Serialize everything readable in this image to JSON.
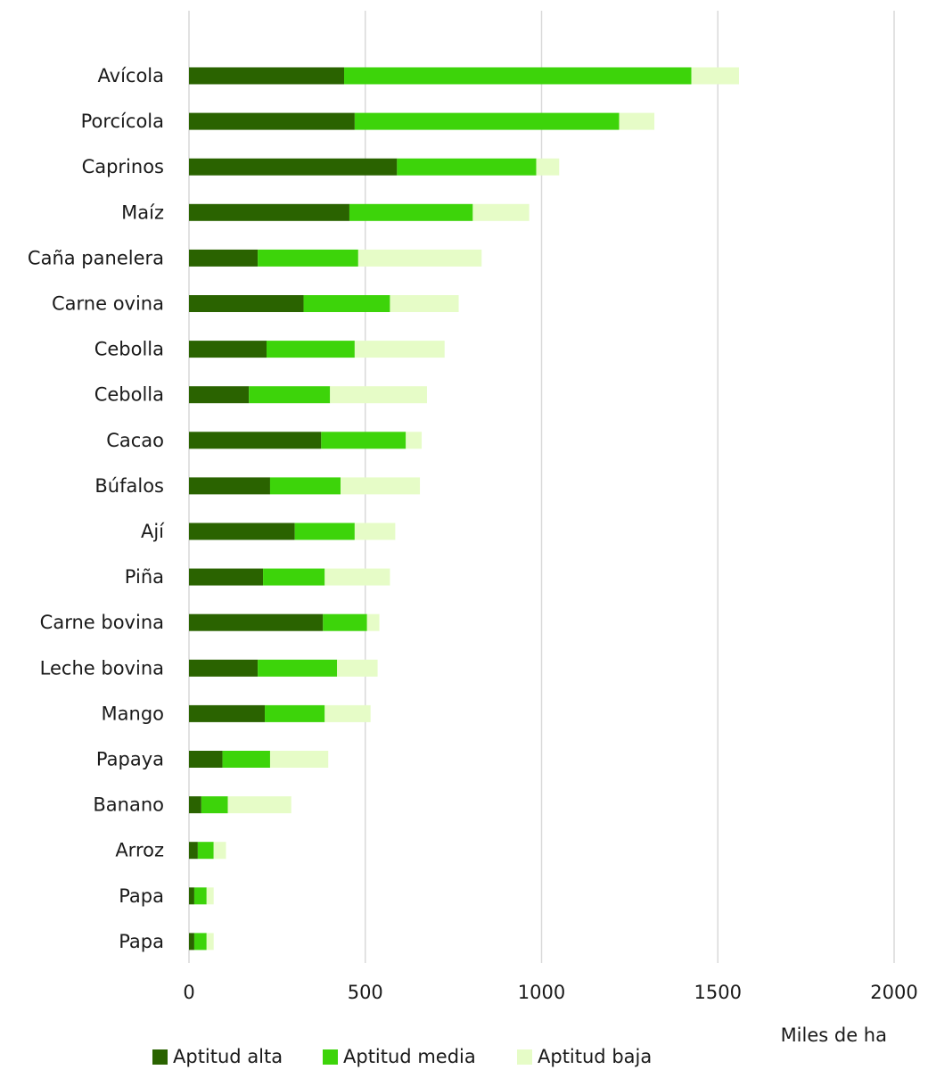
{
  "chart_data": {
    "type": "bar",
    "orientation": "horizontal",
    "stacked": true,
    "categories": [
      "Avícola",
      "Porcícola",
      "Caprinos",
      "Maíz",
      "Caña panelera",
      "Carne ovina",
      "Cebolla",
      "Cebolla",
      "Cacao",
      "Búfalos",
      "Ají",
      "Piña",
      "Carne bovina",
      "Leche bovina",
      "Mango",
      "Papaya",
      "Banano",
      "Arroz",
      "Papa",
      "Papa"
    ],
    "series": [
      {
        "name": "Aptitud alta",
        "color": "#2a6300",
        "values": [
          440,
          470,
          590,
          455,
          195,
          325,
          220,
          170,
          375,
          230,
          300,
          210,
          380,
          195,
          215,
          95,
          35,
          25,
          15,
          15
        ]
      },
      {
        "name": "Aptitud media",
        "color": "#3dd40a",
        "values": [
          985,
          750,
          395,
          350,
          285,
          245,
          250,
          230,
          240,
          200,
          170,
          175,
          125,
          225,
          170,
          135,
          75,
          45,
          35,
          35
        ]
      },
      {
        "name": "Aptitud baja",
        "color": "#e6fcc7",
        "values": [
          135,
          100,
          65,
          160,
          350,
          195,
          255,
          275,
          45,
          225,
          115,
          185,
          35,
          115,
          130,
          165,
          180,
          35,
          20,
          20
        ]
      }
    ],
    "x_ticks": [
      "0",
      "500",
      "1000",
      "1500",
      "2000"
    ],
    "xlim": [
      0,
      2000
    ],
    "xlabel": "Miles de ha",
    "grid": "vertical",
    "legend_position": "bottom"
  }
}
